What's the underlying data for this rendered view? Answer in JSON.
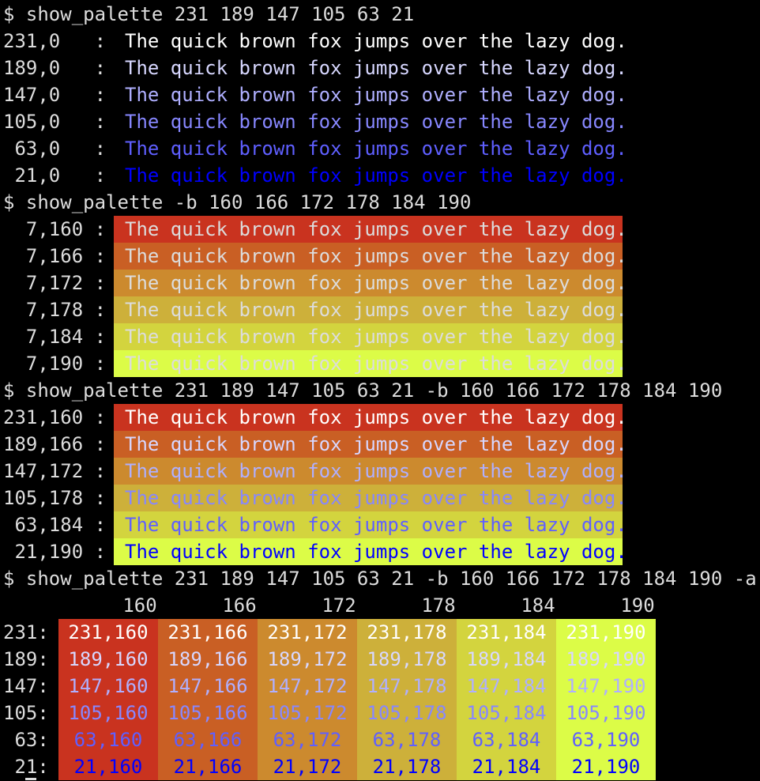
{
  "fg_colors": {
    "231": "#ffffff",
    "189": "#d7d7ff",
    "147": "#afafff",
    "105": "#8787ff",
    "63": "#5f5fff",
    "21": "#0000ff"
  },
  "bg_colors": {
    "160": "#c9331f",
    "166": "#c95f24",
    "172": "#cc8a2e",
    "178": "#cdb03a",
    "184": "#d3d43e",
    "190": "#dcfc47"
  },
  "sample_text": "The quick brown fox jumps over the lazy dog.",
  "sections": [
    {
      "command": "$ show_palette 231 189 147 105 63 21",
      "rows": [
        {
          "label": "231,0   :",
          "fg": "231",
          "bg": null
        },
        {
          "label": "189,0   :",
          "fg": "189",
          "bg": null
        },
        {
          "label": "147,0   :",
          "fg": "147",
          "bg": null
        },
        {
          "label": "105,0   :",
          "fg": "105",
          "bg": null
        },
        {
          "label": " 63,0   :",
          "fg": "63",
          "bg": null
        },
        {
          "label": " 21,0   :",
          "fg": "21",
          "bg": null
        }
      ]
    },
    {
      "command": "$ show_palette -b 160 166 172 178 184 190",
      "rows": [
        {
          "label": "  7,160 :",
          "fg": "7",
          "bg": "160"
        },
        {
          "label": "  7,166 :",
          "fg": "7",
          "bg": "166"
        },
        {
          "label": "  7,172 :",
          "fg": "7",
          "bg": "172"
        },
        {
          "label": "  7,178 :",
          "fg": "7",
          "bg": "178"
        },
        {
          "label": "  7,184 :",
          "fg": "7",
          "bg": "184"
        },
        {
          "label": "  7,190 :",
          "fg": "7",
          "bg": "190"
        }
      ]
    },
    {
      "command": "$ show_palette 231 189 147 105 63 21 -b 160 166 172 178 184 190",
      "rows": [
        {
          "label": "231,160 :",
          "fg": "231",
          "bg": "160"
        },
        {
          "label": "189,166 :",
          "fg": "189",
          "bg": "166"
        },
        {
          "label": "147,172 :",
          "fg": "147",
          "bg": "172"
        },
        {
          "label": "105,178 :",
          "fg": "105",
          "bg": "178"
        },
        {
          "label": " 63,184 :",
          "fg": "63",
          "bg": "184"
        },
        {
          "label": " 21,190 :",
          "fg": "21",
          "bg": "190"
        }
      ]
    }
  ],
  "grid": {
    "command": "$ show_palette 231 189 147 105 63 21 -b 160 166 172 178 184 190 -a",
    "columns": [
      "160",
      "166",
      "172",
      "178",
      "184",
      "190"
    ],
    "rows": [
      {
        "label": "231:",
        "fg": "231"
      },
      {
        "label": "189:",
        "fg": "189"
      },
      {
        "label": "147:",
        "fg": "147"
      },
      {
        "label": "105:",
        "fg": "105"
      },
      {
        "label": " 63:",
        "fg": "63"
      },
      {
        "label": " 21:",
        "fg": "21"
      }
    ],
    "cells": [
      [
        "231,160",
        "231,166",
        "231,172",
        "231,178",
        "231,184",
        "231,190"
      ],
      [
        "189,160",
        "189,166",
        "189,172",
        "189,178",
        "189,184",
        "189,190"
      ],
      [
        "147,160",
        "147,166",
        "147,172",
        "147,178",
        "147,184",
        "147,190"
      ],
      [
        "105,160",
        "105,166",
        "105,172",
        "105,178",
        "105,184",
        "105,190"
      ],
      [
        "63,160",
        "63,166",
        "63,172",
        "63,178",
        "63,184",
        "63,190"
      ],
      [
        "21,160",
        "21,166",
        "21,172",
        "21,178",
        "21,184",
        "21,190"
      ]
    ]
  },
  "default_fg_7": "#dcdcdc",
  "terminal_bg": "#000000"
}
